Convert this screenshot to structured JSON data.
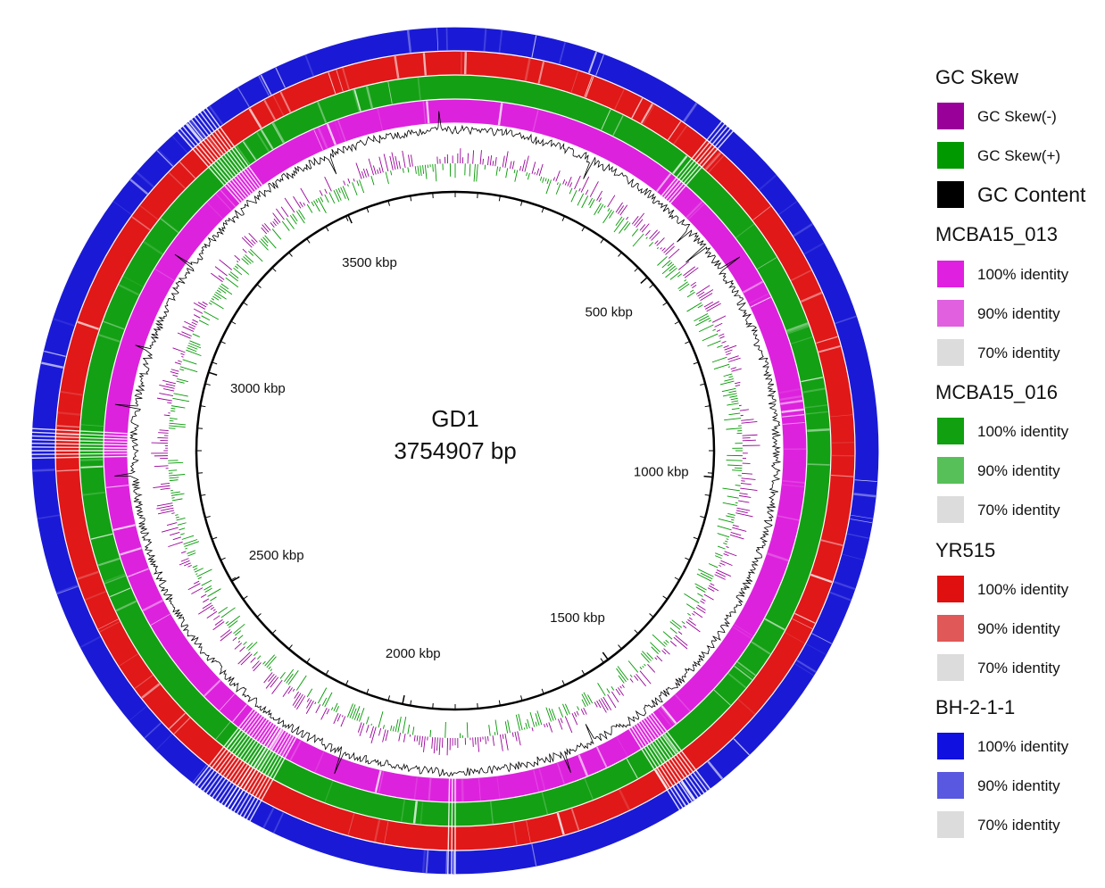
{
  "map": {
    "name": "GD1",
    "length": "3754907 bp",
    "ticks": [
      "500 kbp",
      "1000 kbp",
      "1500 kbp",
      "2000 kbp",
      "2500 kbp",
      "3000 kbp",
      "3500 kbp"
    ],
    "rings": [
      {
        "name": "BH-2-1-1",
        "color": "#1a1ad6",
        "light": "#5a5ae6"
      },
      {
        "name": "YR515",
        "color": "#e01818",
        "light": "#e86060"
      },
      {
        "name": "MCBA15_016",
        "color": "#14a014",
        "light": "#5cc05c"
      },
      {
        "name": "MCBA15_013",
        "color": "#dd22dd",
        "light": "#e55ee5"
      }
    ],
    "gc_skew_neg_color": "#990099",
    "gc_skew_pos_color": "#009900",
    "gc_content_color": "#000000"
  },
  "legend": {
    "gc_skew": {
      "title": "GC Skew",
      "items": [
        {
          "label": "GC Skew(-)",
          "color": "#990099"
        },
        {
          "label": "GC Skew(+)",
          "color": "#009900"
        },
        {
          "label": "GC Content",
          "color": "#000000"
        }
      ]
    },
    "mcba15_013": {
      "title": "MCBA15_013",
      "items": [
        {
          "label": "100% identity",
          "color": "#e020e0"
        },
        {
          "label": "90% identity",
          "color": "#e060e0"
        },
        {
          "label": "70% identity",
          "color": "#dcdcdc"
        }
      ]
    },
    "mcba15_016": {
      "title": "MCBA15_016",
      "items": [
        {
          "label": "100% identity",
          "color": "#10a010"
        },
        {
          "label": "90% identity",
          "color": "#58c058"
        },
        {
          "label": "70% identity",
          "color": "#dcdcdc"
        }
      ]
    },
    "yr515": {
      "title": "YR515",
      "items": [
        {
          "label": "100% identity",
          "color": "#e01010"
        },
        {
          "label": "90% identity",
          "color": "#e05858"
        },
        {
          "label": "70% identity",
          "color": "#dcdcdc"
        }
      ]
    },
    "bh211": {
      "title": "BH-2-1-1",
      "items": [
        {
          "label": "100% identity",
          "color": "#1010e0"
        },
        {
          "label": "90% identity",
          "color": "#5858e0"
        },
        {
          "label": "70% identity",
          "color": "#dcdcdc"
        }
      ]
    }
  }
}
